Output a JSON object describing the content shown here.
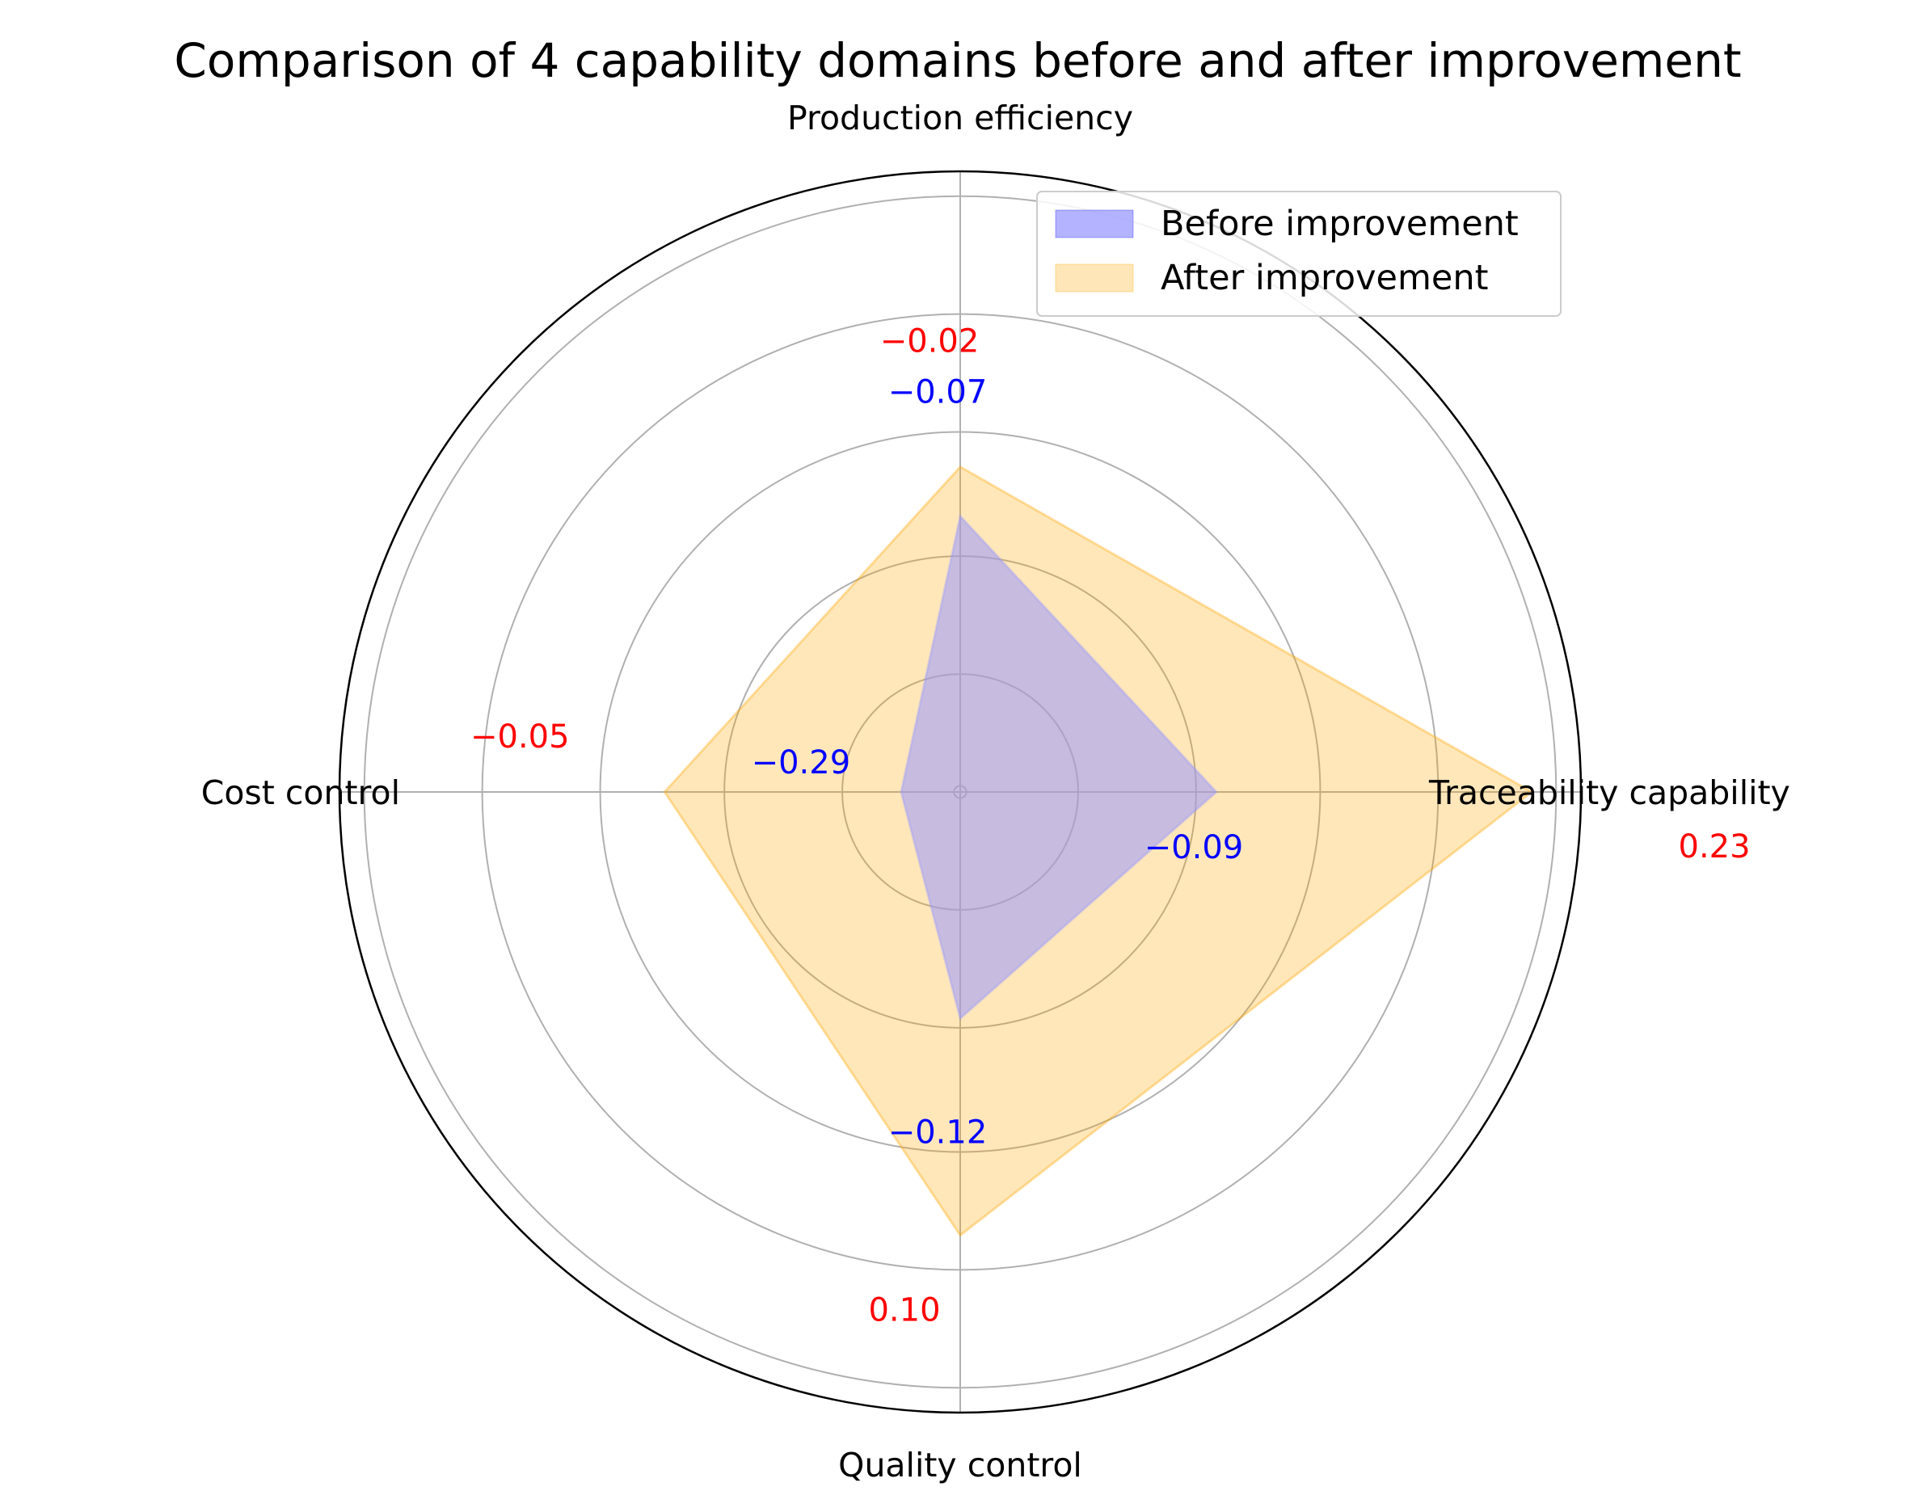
{
  "chart_data": {
    "type": "radar",
    "title": "Comparison of 4 capability domains before and after improvement",
    "categories": [
      "Production efficiency",
      "Traceability capability",
      "Quality control",
      "Cost control"
    ],
    "rlim": [
      -0.35,
      0.28
    ],
    "grid": true,
    "legend_position": "top-right",
    "series": [
      {
        "name": "Before improvement",
        "values": [
          -0.07,
          -0.09,
          -0.12,
          -0.29
        ],
        "value_labels": [
          "−0.07",
          "−0.09",
          "−0.12",
          "−0.29"
        ],
        "color": "#0000ff",
        "fill": "#9999ff"
      },
      {
        "name": "After improvement",
        "values": [
          -0.02,
          0.23,
          0.1,
          -0.05
        ],
        "value_labels": [
          "−0.02",
          "0.23",
          "0.10",
          "−0.05"
        ],
        "color": "#ff0000",
        "fill": "#ffa500"
      }
    ]
  }
}
